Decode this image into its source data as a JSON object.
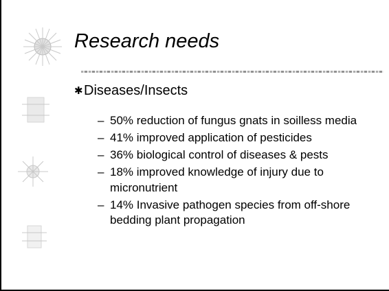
{
  "slide": {
    "title": "Research needs",
    "bullet": "Diseases/Insects",
    "items": [
      "50% reduction of fungus gnats in soilless media",
      "41% improved application of pesticides",
      "36% biological control of diseases & pests",
      "18% improved knowledge of injury due to micronutrient",
      "14% Invasive pathogen species from off-shore bedding plant propagation"
    ]
  }
}
